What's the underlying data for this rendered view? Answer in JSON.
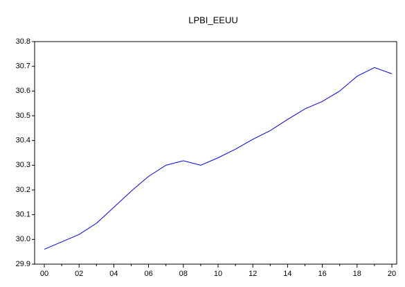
{
  "chart_data": {
    "type": "line",
    "title": "LPBI_EEUU",
    "categories": [
      "00",
      null,
      "02",
      null,
      "04",
      null,
      "06",
      null,
      "08",
      null,
      "10",
      null,
      "12",
      null,
      "14",
      null,
      "16",
      null,
      "18",
      null,
      "20"
    ],
    "series": [
      {
        "name": "LPBI_EEUU",
        "color": "#0000ff",
        "values": [
          29.96,
          29.99,
          30.02,
          30.065,
          30.13,
          30.195,
          30.255,
          30.3,
          30.318,
          30.3,
          30.33,
          30.365,
          30.405,
          30.44,
          30.485,
          30.528,
          30.558,
          30.6,
          30.66,
          30.695,
          30.67
        ]
      }
    ],
    "ylim": [
      29.9,
      30.8
    ],
    "yticks": [
      29.9,
      {
        "value": 30,
        "label": "30.0"
      },
      30.1,
      30.2,
      30.3,
      30.4,
      30.5,
      30.6,
      30.7,
      30.8
    ],
    "grid": false
  }
}
